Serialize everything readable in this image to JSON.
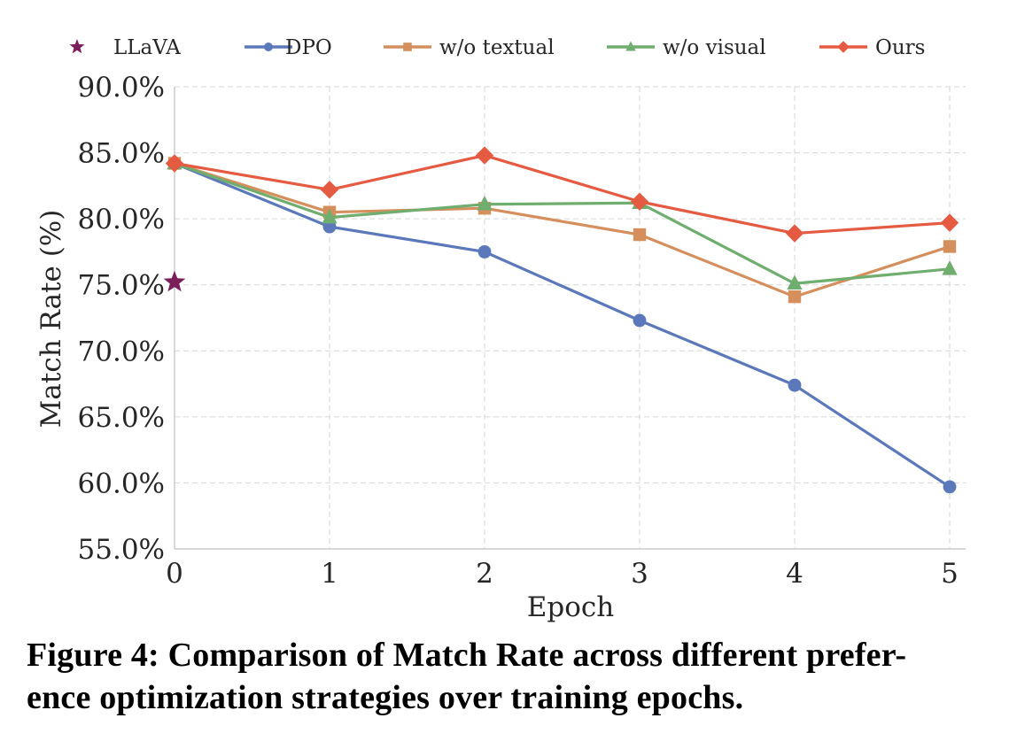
{
  "chart_data": {
    "type": "line",
    "title": "",
    "xlabel": "Epoch",
    "ylabel": "Match Rate (%)",
    "x": [
      0,
      1,
      2,
      3,
      4,
      5
    ],
    "x_tick_labels": [
      "0",
      "1",
      "2",
      "3",
      "4",
      "5"
    ],
    "xlim": [
      0,
      5
    ],
    "ylim": [
      55,
      90
    ],
    "y_ticks": [
      55,
      60,
      65,
      70,
      75,
      80,
      85,
      90
    ],
    "y_tick_labels": [
      "55.0%",
      "60.0%",
      "65.0%",
      "70.0%",
      "75.0%",
      "80.0%",
      "85.0%",
      "90.0%"
    ],
    "grid": true,
    "legend_position": "top",
    "baseline": {
      "name": "LLaVA",
      "marker": "star",
      "color": "#7b1e5a",
      "x": 0,
      "y": 75.2
    },
    "series": [
      {
        "name": "DPO",
        "marker": "circle",
        "color": "#5b78ba",
        "values": [
          84.2,
          79.4,
          77.5,
          72.3,
          67.4,
          59.7
        ]
      },
      {
        "name": "w/o textual",
        "marker": "square",
        "color": "#d48f5c",
        "values": [
          84.2,
          80.5,
          80.8,
          78.8,
          74.1,
          77.9
        ]
      },
      {
        "name": "w/o visual",
        "marker": "triangle",
        "color": "#6fae6f",
        "values": [
          84.2,
          80.1,
          81.1,
          81.2,
          75.1,
          76.2
        ]
      },
      {
        "name": "Ours",
        "marker": "diamond",
        "color": "#e55b42",
        "values": [
          84.2,
          82.2,
          84.8,
          81.3,
          78.9,
          79.7
        ]
      }
    ]
  },
  "caption": {
    "line1": "Figure 4: Comparison of Match Rate across different prefer-",
    "line2": "ence optimization strategies over training epochs."
  }
}
